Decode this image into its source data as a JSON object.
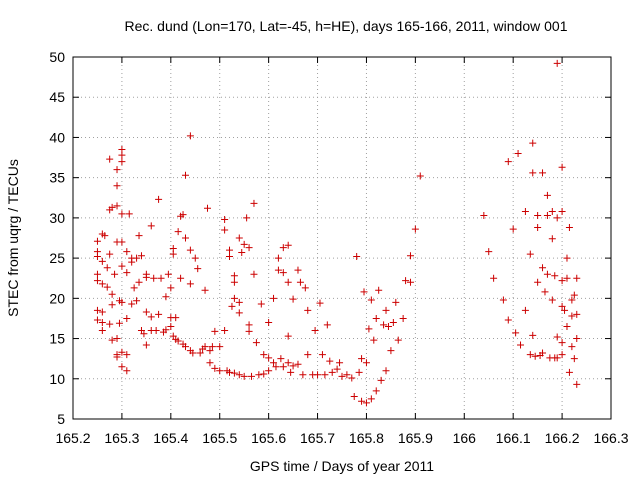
{
  "chart_data": {
    "type": "scatter",
    "title": "Rec. dund (Lon=170, Lat=-45, h=HE), days 165-166, 2011, window 001",
    "xlabel": "GPS time / Days of year 2011",
    "ylabel": "STEC from uqrg / TECUs",
    "xlim": [
      165.2,
      166.3
    ],
    "ylim": [
      5,
      50
    ],
    "xticks": [
      "165.2",
      "165.3",
      "165.4",
      "165.5",
      "165.6",
      "165.7",
      "165.8",
      "165.9",
      "166",
      "166.1",
      "166.2",
      "166.3"
    ],
    "yticks": [
      "5",
      "10",
      "15",
      "20",
      "25",
      "30",
      "35",
      "40",
      "45",
      "50"
    ],
    "grid": true,
    "legend": "none",
    "marker": "plus",
    "series_color": "#cc0000",
    "points": [
      [
        165.25,
        27.1
      ],
      [
        165.25,
        25.8
      ],
      [
        165.25,
        25.2
      ],
      [
        165.25,
        23.0
      ],
      [
        165.25,
        22.2
      ],
      [
        165.25,
        18.5
      ],
      [
        165.25,
        17.3
      ],
      [
        165.26,
        28.0
      ],
      [
        165.26,
        24.6
      ],
      [
        165.26,
        21.8
      ],
      [
        165.26,
        18.3
      ],
      [
        165.26,
        17.0
      ],
      [
        165.26,
        16.0
      ],
      [
        165.265,
        27.8
      ],
      [
        165.27,
        23.8
      ],
      [
        165.27,
        21.4
      ],
      [
        165.275,
        37.3
      ],
      [
        165.275,
        31.0
      ],
      [
        165.275,
        25.5
      ],
      [
        165.275,
        16.8
      ],
      [
        165.28,
        31.3
      ],
      [
        165.28,
        20.5
      ],
      [
        165.28,
        19.2
      ],
      [
        165.28,
        14.8
      ],
      [
        165.285,
        23.0
      ],
      [
        165.29,
        36.0
      ],
      [
        165.29,
        34.0
      ],
      [
        165.29,
        31.5
      ],
      [
        165.29,
        27.0
      ],
      [
        165.29,
        15.0
      ],
      [
        165.29,
        13.0
      ],
      [
        165.29,
        12.7
      ],
      [
        165.295,
        19.7
      ],
      [
        165.295,
        16.9
      ],
      [
        165.3,
        38.5
      ],
      [
        165.3,
        37.8
      ],
      [
        165.3,
        37.0
      ],
      [
        165.3,
        30.5
      ],
      [
        165.3,
        27.0
      ],
      [
        165.3,
        24.0
      ],
      [
        165.3,
        19.5
      ],
      [
        165.3,
        13.3
      ],
      [
        165.3,
        11.5
      ],
      [
        165.31,
        25.8
      ],
      [
        165.31,
        23.2
      ],
      [
        165.31,
        17.5
      ],
      [
        165.31,
        13.0
      ],
      [
        165.31,
        11.0
      ],
      [
        165.315,
        30.5
      ],
      [
        165.32,
        25.0
      ],
      [
        165.32,
        24.5
      ],
      [
        165.32,
        19.3
      ],
      [
        165.325,
        21.3
      ],
      [
        165.33,
        25.0
      ],
      [
        165.33,
        19.7
      ],
      [
        165.335,
        27.8
      ],
      [
        165.335,
        22.0
      ],
      [
        165.34,
        25.3
      ],
      [
        165.34,
        16.0
      ],
      [
        165.345,
        15.6
      ],
      [
        165.35,
        23.0
      ],
      [
        165.35,
        22.6
      ],
      [
        165.35,
        18.3
      ],
      [
        165.35,
        14.2
      ],
      [
        165.36,
        29.0
      ],
      [
        165.36,
        17.7
      ],
      [
        165.36,
        16.0
      ],
      [
        165.365,
        22.5
      ],
      [
        165.37,
        16.0
      ],
      [
        165.375,
        32.3
      ],
      [
        165.375,
        18.0
      ],
      [
        165.38,
        22.5
      ],
      [
        165.385,
        15.8
      ],
      [
        165.39,
        20.2
      ],
      [
        165.39,
        16.1
      ],
      [
        165.395,
        23.0
      ],
      [
        165.4,
        21.3
      ],
      [
        165.4,
        17.6
      ],
      [
        165.4,
        16.5
      ],
      [
        165.405,
        26.2
      ],
      [
        165.405,
        25.5
      ],
      [
        165.405,
        15.3
      ],
      [
        165.41,
        17.6
      ],
      [
        165.41,
        14.9
      ],
      [
        165.415,
        28.3
      ],
      [
        165.415,
        14.7
      ],
      [
        165.42,
        30.2
      ],
      [
        165.42,
        22.5
      ],
      [
        165.425,
        30.4
      ],
      [
        165.425,
        14.3
      ],
      [
        165.43,
        35.3
      ],
      [
        165.43,
        27.5
      ],
      [
        165.43,
        14.0
      ],
      [
        165.44,
        40.2
      ],
      [
        165.44,
        26.0
      ],
      [
        165.44,
        21.8
      ],
      [
        165.44,
        13.5
      ],
      [
        165.445,
        13.2
      ],
      [
        165.45,
        25.0
      ],
      [
        165.455,
        23.7
      ],
      [
        165.46,
        13.2
      ],
      [
        165.465,
        13.7
      ],
      [
        165.47,
        21.0
      ],
      [
        165.47,
        14.0
      ],
      [
        165.475,
        31.2
      ],
      [
        165.48,
        13.5
      ],
      [
        165.48,
        12.0
      ],
      [
        165.485,
        14.0
      ],
      [
        165.49,
        15.9
      ],
      [
        165.49,
        11.3
      ],
      [
        165.5,
        14.0
      ],
      [
        165.5,
        11.0
      ],
      [
        165.51,
        29.8
      ],
      [
        165.51,
        28.5
      ],
      [
        165.51,
        16.0
      ],
      [
        165.515,
        11.0
      ],
      [
        165.52,
        26.0
      ],
      [
        165.52,
        25.2
      ],
      [
        165.52,
        10.8
      ],
      [
        165.525,
        19.0
      ],
      [
        165.53,
        22.8
      ],
      [
        165.53,
        22.0
      ],
      [
        165.53,
        20.0
      ],
      [
        165.53,
        10.7
      ],
      [
        165.54,
        27.5
      ],
      [
        165.54,
        19.5
      ],
      [
        165.54,
        18.2
      ],
      [
        165.54,
        10.5
      ],
      [
        165.545,
        25.7
      ],
      [
        165.55,
        26.7
      ],
      [
        165.55,
        10.3
      ],
      [
        165.555,
        30.0
      ],
      [
        165.56,
        26.3
      ],
      [
        165.56,
        16.7
      ],
      [
        165.56,
        15.9
      ],
      [
        165.565,
        10.3
      ],
      [
        165.57,
        31.8
      ],
      [
        165.57,
        23.0
      ],
      [
        165.575,
        14.5
      ],
      [
        165.58,
        10.5
      ],
      [
        165.585,
        19.3
      ],
      [
        165.59,
        13.0
      ],
      [
        165.59,
        10.6
      ],
      [
        165.6,
        17.0
      ],
      [
        165.6,
        12.6
      ],
      [
        165.6,
        11.0
      ],
      [
        165.61,
        20.0
      ],
      [
        165.61,
        12.0
      ],
      [
        165.615,
        11.5
      ],
      [
        165.62,
        25.0
      ],
      [
        165.62,
        23.5
      ],
      [
        165.625,
        12.5
      ],
      [
        165.63,
        26.3
      ],
      [
        165.63,
        23.2
      ],
      [
        165.63,
        11.5
      ],
      [
        165.64,
        26.6
      ],
      [
        165.64,
        22.0
      ],
      [
        165.64,
        15.3
      ],
      [
        165.64,
        12.0
      ],
      [
        165.645,
        10.8
      ],
      [
        165.65,
        19.9
      ],
      [
        165.65,
        11.6
      ],
      [
        165.66,
        23.5
      ],
      [
        165.66,
        11.8
      ],
      [
        165.665,
        22.0
      ],
      [
        165.67,
        10.5
      ],
      [
        165.675,
        21.3
      ],
      [
        165.68,
        13.0
      ],
      [
        165.68,
        18.5
      ],
      [
        165.69,
        10.5
      ],
      [
        165.695,
        16.0
      ],
      [
        165.7,
        10.5
      ],
      [
        165.705,
        19.4
      ],
      [
        165.71,
        13.0
      ],
      [
        165.715,
        10.5
      ],
      [
        165.72,
        16.7
      ],
      [
        165.725,
        12.2
      ],
      [
        165.73,
        10.8
      ],
      [
        165.74,
        11.2
      ],
      [
        165.745,
        12.0
      ],
      [
        165.75,
        10.3
      ],
      [
        165.76,
        10.5
      ],
      [
        165.77,
        10.1
      ],
      [
        165.775,
        7.8
      ],
      [
        165.78,
        25.2
      ],
      [
        165.785,
        10.8
      ],
      [
        165.79,
        7.2
      ],
      [
        165.79,
        12.5
      ],
      [
        165.795,
        20.8
      ],
      [
        165.8,
        7.0
      ],
      [
        165.8,
        12.0
      ],
      [
        165.805,
        16.2
      ],
      [
        165.81,
        19.8
      ],
      [
        165.81,
        7.5
      ],
      [
        165.815,
        14.8
      ],
      [
        165.82,
        8.5
      ],
      [
        165.82,
        17.5
      ],
      [
        165.825,
        21.0
      ],
      [
        165.83,
        9.8
      ],
      [
        165.835,
        16.7
      ],
      [
        165.84,
        18.5
      ],
      [
        165.84,
        11.0
      ],
      [
        165.845,
        16.5
      ],
      [
        165.85,
        13.5
      ],
      [
        165.855,
        17.0
      ],
      [
        165.86,
        19.5
      ],
      [
        165.865,
        14.8
      ],
      [
        165.875,
        17.5
      ],
      [
        165.88,
        22.2
      ],
      [
        165.89,
        22.0
      ],
      [
        165.89,
        25.3
      ],
      [
        165.9,
        28.6
      ],
      [
        165.91,
        35.2
      ],
      [
        166.04,
        30.3
      ],
      [
        166.05,
        25.8
      ],
      [
        166.06,
        22.5
      ],
      [
        166.08,
        19.8
      ],
      [
        166.09,
        37.0
      ],
      [
        166.09,
        17.3
      ],
      [
        166.1,
        28.6
      ],
      [
        166.105,
        15.7
      ],
      [
        166.11,
        38.0
      ],
      [
        166.115,
        14.2
      ],
      [
        166.125,
        30.8
      ],
      [
        166.125,
        18.5
      ],
      [
        166.135,
        25.5
      ],
      [
        166.135,
        13.0
      ],
      [
        166.14,
        39.3
      ],
      [
        166.14,
        35.6
      ],
      [
        166.14,
        15.4
      ],
      [
        166.145,
        12.8
      ],
      [
        166.15,
        30.3
      ],
      [
        166.15,
        28.8
      ],
      [
        166.15,
        22.0
      ],
      [
        166.155,
        12.9
      ],
      [
        166.16,
        35.6
      ],
      [
        166.16,
        23.8
      ],
      [
        166.16,
        13.2
      ],
      [
        166.165,
        20.8
      ],
      [
        166.17,
        32.8
      ],
      [
        166.17,
        30.3
      ],
      [
        166.17,
        23.0
      ],
      [
        166.175,
        12.6
      ],
      [
        166.18,
        30.8
      ],
      [
        166.18,
        27.4
      ],
      [
        166.18,
        19.8
      ],
      [
        166.185,
        22.8
      ],
      [
        166.185,
        12.6
      ],
      [
        166.19,
        49.2
      ],
      [
        166.19,
        30.0
      ],
      [
        166.19,
        15.2
      ],
      [
        166.19,
        12.6
      ],
      [
        166.2,
        36.3
      ],
      [
        166.2,
        30.8
      ],
      [
        166.2,
        22.2
      ],
      [
        166.2,
        19.0
      ],
      [
        166.2,
        14.5
      ],
      [
        166.2,
        13.0
      ],
      [
        166.205,
        18.5
      ],
      [
        166.21,
        25.0
      ],
      [
        166.21,
        22.5
      ],
      [
        166.21,
        16.5
      ],
      [
        166.215,
        28.8
      ],
      [
        166.215,
        10.8
      ],
      [
        166.22,
        19.8
      ],
      [
        166.22,
        17.8
      ],
      [
        166.22,
        14.0
      ],
      [
        166.225,
        20.4
      ],
      [
        166.225,
        12.5
      ],
      [
        166.23,
        22.5
      ],
      [
        166.23,
        18.0
      ],
      [
        166.23,
        15.0
      ],
      [
        166.23,
        9.3
      ]
    ]
  }
}
